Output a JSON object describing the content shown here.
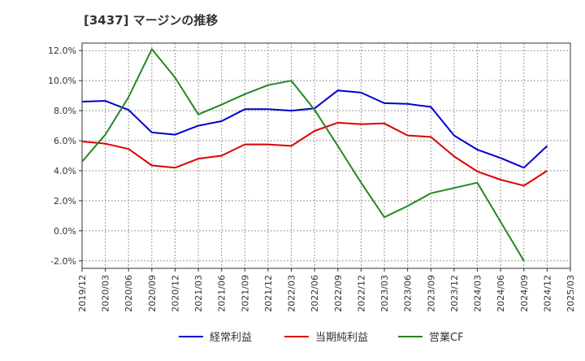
{
  "chart_data": {
    "type": "line",
    "title": "[3437]  マージンの推移",
    "xlabel": "",
    "ylabel": "",
    "x": [
      "2019/12",
      "2020/03",
      "2020/06",
      "2020/09",
      "2020/12",
      "2021/03",
      "2021/06",
      "2021/09",
      "2021/12",
      "2022/03",
      "2022/06",
      "2022/09",
      "2022/12",
      "2023/03",
      "2023/06",
      "2023/09",
      "2023/12",
      "2024/03",
      "2024/06",
      "2024/09",
      "2024/12",
      "2025/03"
    ],
    "y_ticks": [
      "-2.0%",
      "0.0%",
      "2.0%",
      "4.0%",
      "6.0%",
      "8.0%",
      "10.0%",
      "12.0%"
    ],
    "ylim": [
      -2.5,
      12.5
    ],
    "grid": true,
    "legend_position": "bottom",
    "series": [
      {
        "name": "経常利益",
        "color": "#0000cc",
        "values": [
          8.6,
          8.65,
          8.05,
          6.55,
          6.4,
          7.0,
          7.3,
          8.1,
          8.1,
          8.0,
          8.15,
          9.35,
          9.2,
          8.5,
          8.45,
          8.25,
          6.35,
          5.4,
          4.85,
          4.2,
          5.65,
          null
        ]
      },
      {
        "name": "当期純利益",
        "color": "#dd0000",
        "values": [
          5.95,
          5.8,
          5.45,
          4.35,
          4.2,
          4.8,
          5.0,
          5.75,
          5.75,
          5.65,
          6.65,
          7.2,
          7.1,
          7.15,
          6.35,
          6.25,
          4.95,
          3.95,
          3.4,
          3.0,
          4.0,
          null
        ]
      },
      {
        "name": "営業CF",
        "color": "#228822",
        "values": [
          4.6,
          6.4,
          8.9,
          12.1,
          10.2,
          7.75,
          8.4,
          9.1,
          9.7,
          10.0,
          8.05,
          5.65,
          3.2,
          0.9,
          1.65,
          2.5,
          2.85,
          3.2,
          0.6,
          -2.0,
          null,
          null
        ]
      }
    ]
  }
}
